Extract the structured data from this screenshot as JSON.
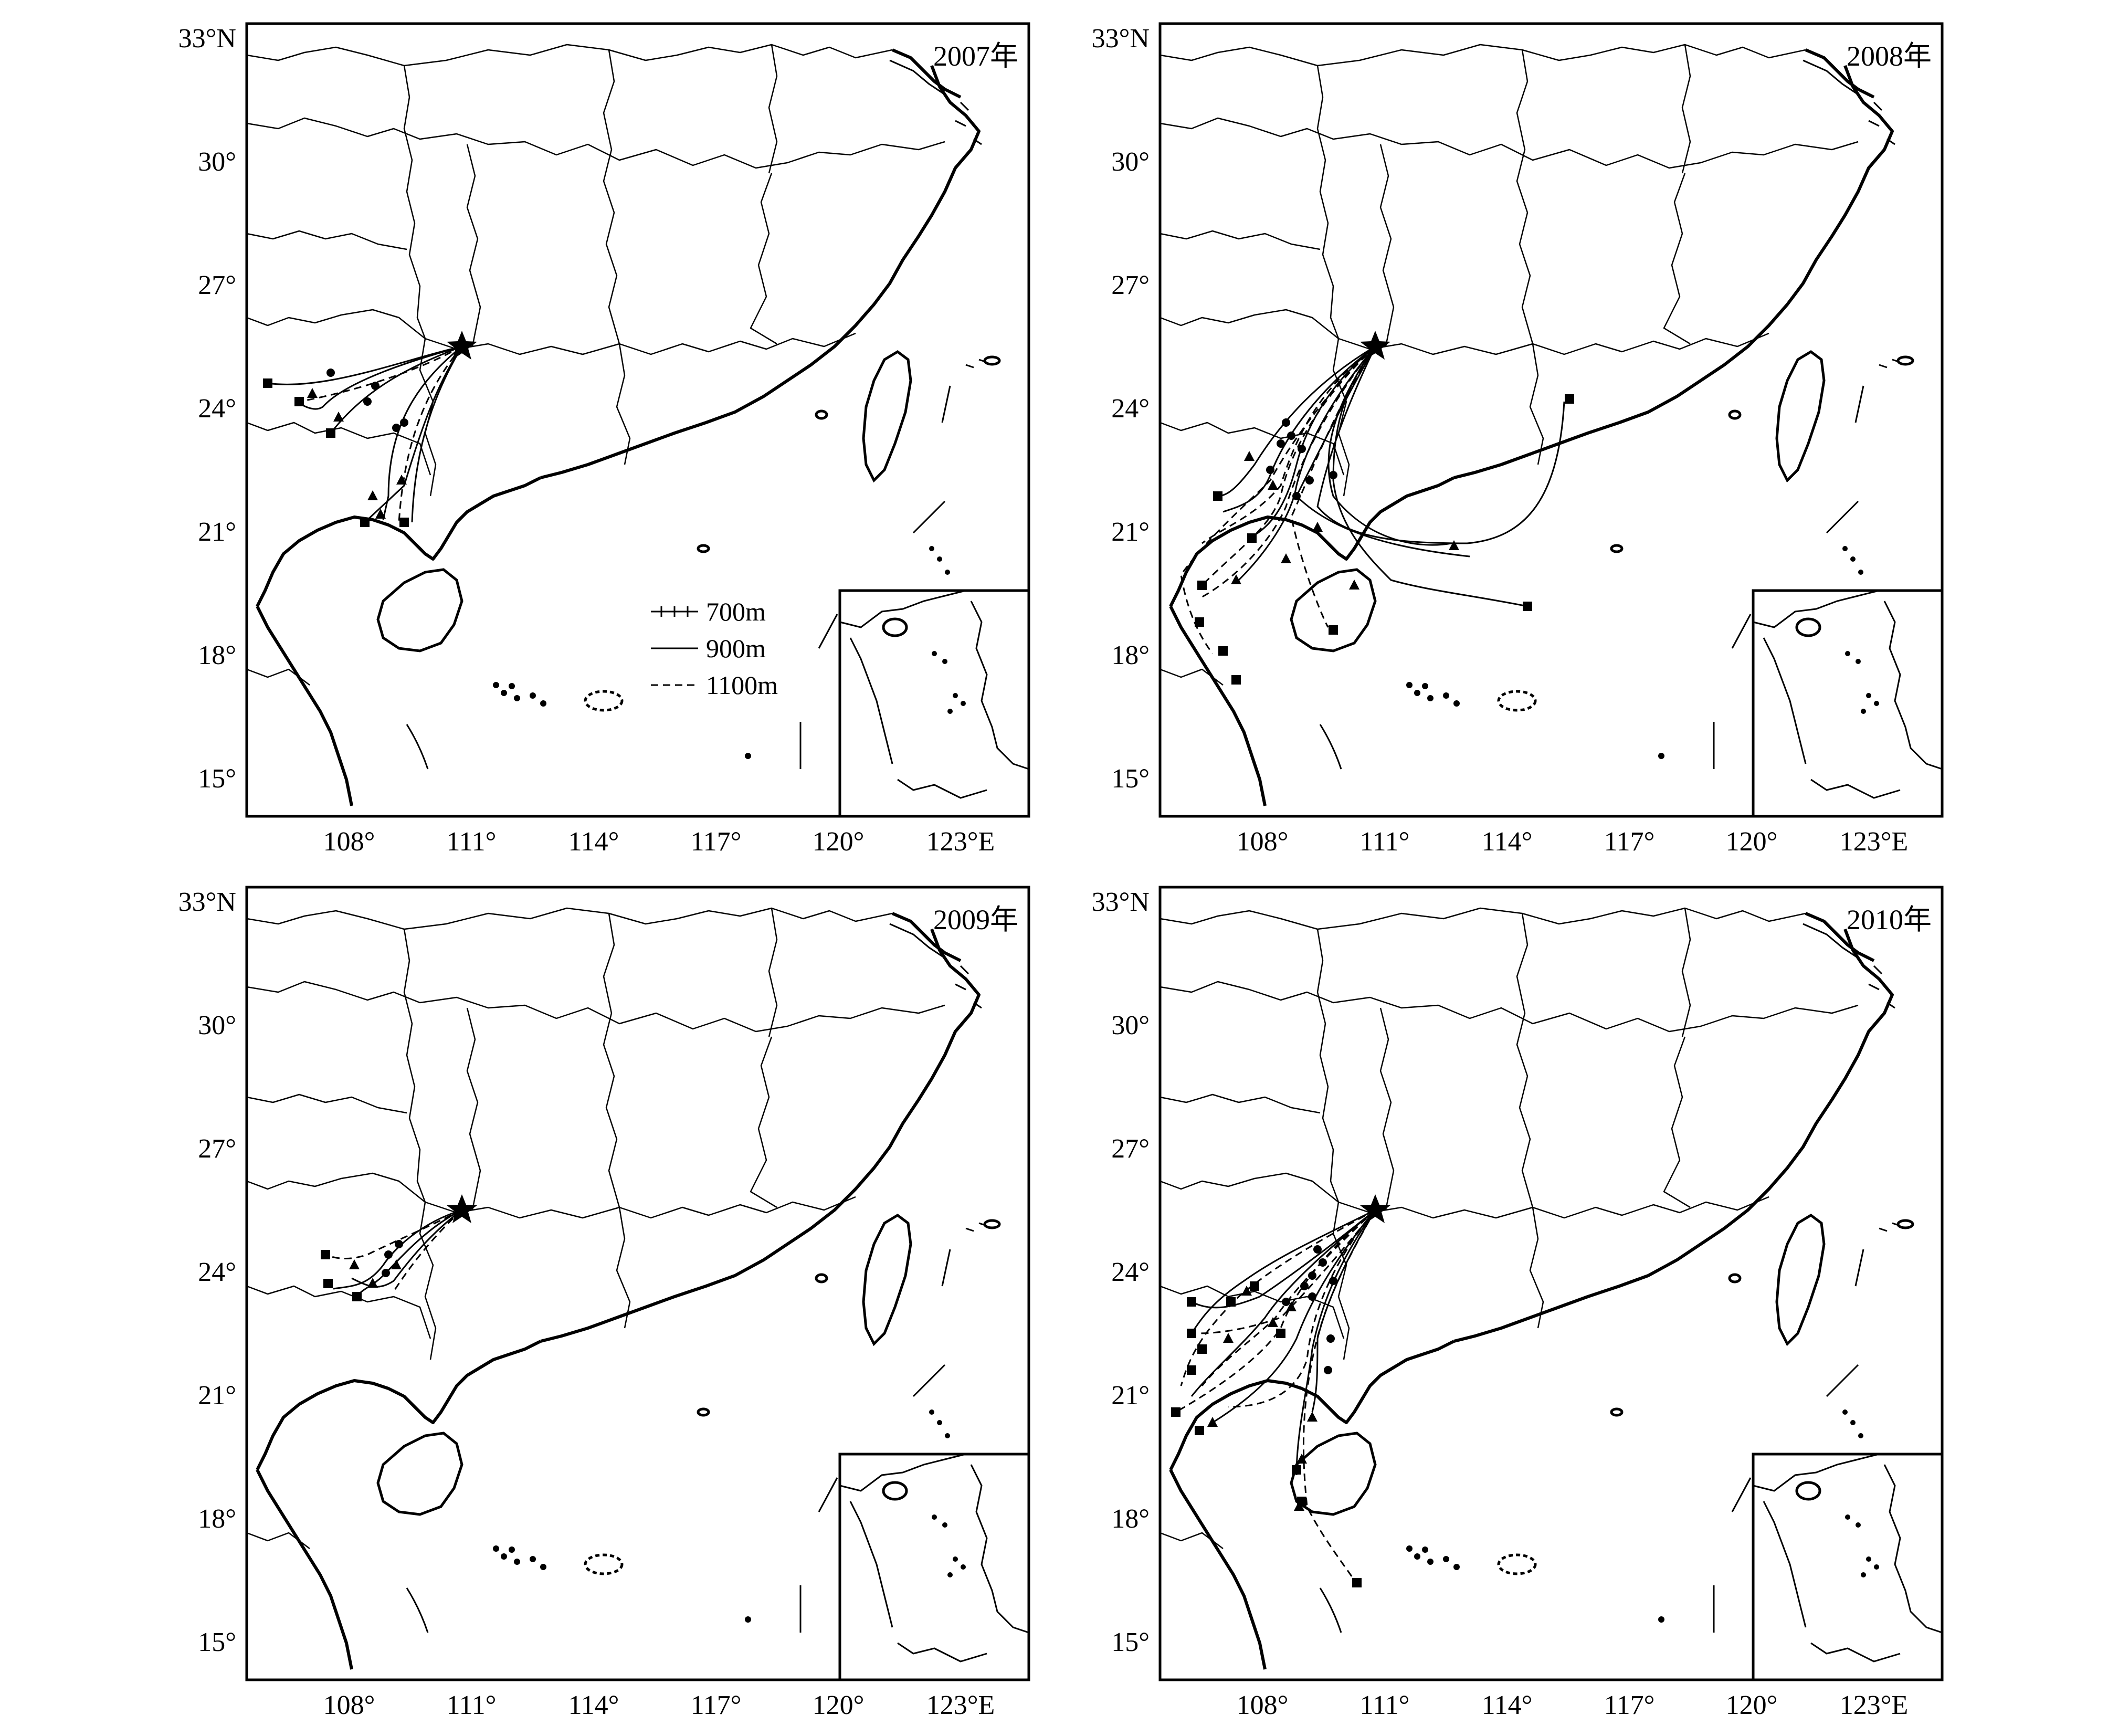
{
  "panels": [
    {
      "year_label": "2007年"
    },
    {
      "year_label": "2008年"
    },
    {
      "year_label": "2009年"
    },
    {
      "year_label": "2010年"
    }
  ],
  "lat_labels": [
    "33°N",
    "30°",
    "27°",
    "24°",
    "21°",
    "18°",
    "15°"
  ],
  "lon_labels": [
    "108°",
    "111°",
    "114°",
    "117°",
    "120°",
    "123°E"
  ],
  "legend": {
    "l700": "700m",
    "l900": "900m",
    "l1100": "1100m"
  }
}
